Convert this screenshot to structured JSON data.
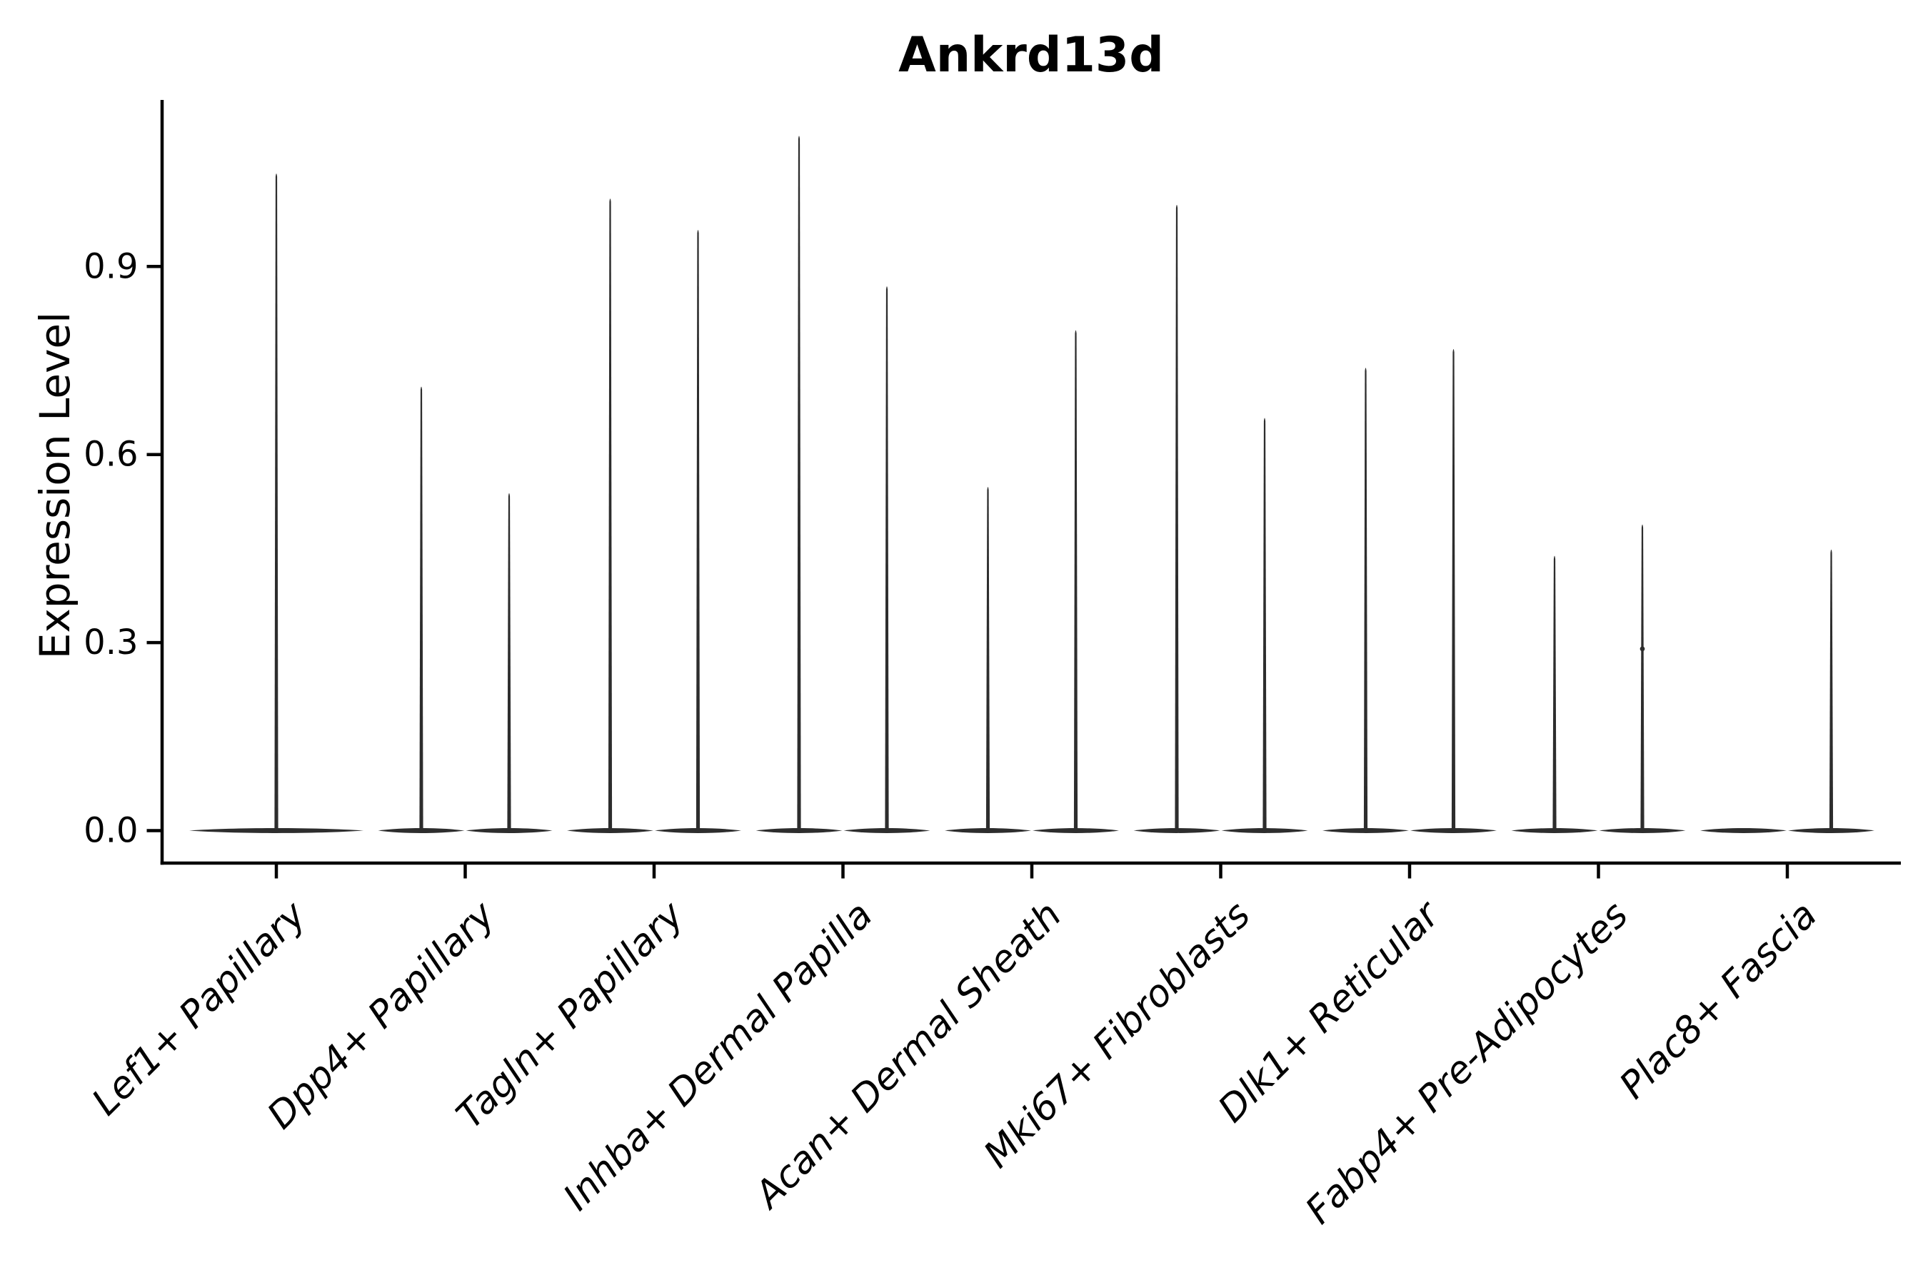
{
  "figure": {
    "background": "#ffffff"
  },
  "chart_data": {
    "type": "violin",
    "title": "Ankrd13d",
    "xlabel": "",
    "ylabel": "Expression Level",
    "y_ticks": [
      0.0,
      0.3,
      0.6,
      0.9
    ],
    "y_tick_labels": [
      "0.0",
      "0.3",
      "0.6",
      "0.9"
    ],
    "ylim": [
      -0.05,
      1.17
    ],
    "x_tick_rotation": 45,
    "grid": false,
    "legend": "none",
    "style": {
      "violin_color": "#2d2d2d",
      "axis_color": "#000000",
      "text_color": "#000000"
    },
    "categories": [
      "Lef1+ Papillary",
      "Dpp4+ Papillary",
      "Tagln+ Papillary",
      "Inhba+ Dermal Papilla",
      "Acan+ Dermal Sheath",
      "Mki67+ Fibroblasts",
      "Dlk1+ Reticular",
      "Fabp4+ Pre-Adipocytes",
      "Plac8+ Fascia"
    ],
    "violins": [
      {
        "category": "Lef1+ Papillary",
        "groups": [
          {
            "max": 1.05
          }
        ]
      },
      {
        "category": "Dpp4+ Papillary",
        "groups": [
          {
            "max": 0.71
          },
          {
            "max": 0.54
          }
        ]
      },
      {
        "category": "Tagln+ Papillary",
        "groups": [
          {
            "max": 1.01
          },
          {
            "max": 0.96
          }
        ]
      },
      {
        "category": "Inhba+ Dermal Papilla",
        "groups": [
          {
            "max": 1.11
          },
          {
            "max": 0.87
          }
        ]
      },
      {
        "category": "Acan+ Dermal Sheath",
        "groups": [
          {
            "max": 0.55
          },
          {
            "max": 0.8
          }
        ]
      },
      {
        "category": "Mki67+ Fibroblasts",
        "groups": [
          {
            "max": 1.0
          },
          {
            "max": 0.66
          }
        ]
      },
      {
        "category": "Dlk1+ Reticular",
        "groups": [
          {
            "max": 0.74
          },
          {
            "max": 0.77
          }
        ]
      },
      {
        "category": "Fabp4+ Pre-Adipocytes",
        "groups": [
          {
            "max": 0.44
          },
          {
            "max": 0.49,
            "dots": [
              0.29
            ]
          }
        ]
      },
      {
        "category": "Plac8+ Fascia",
        "groups": [
          {
            "max": 0.0
          },
          {
            "max": 0.45
          }
        ]
      }
    ],
    "description": "Zero-inflated single-cell expression distributions: each violin is a wide flat base at 0 with a thin density spike up to the max expression value."
  }
}
